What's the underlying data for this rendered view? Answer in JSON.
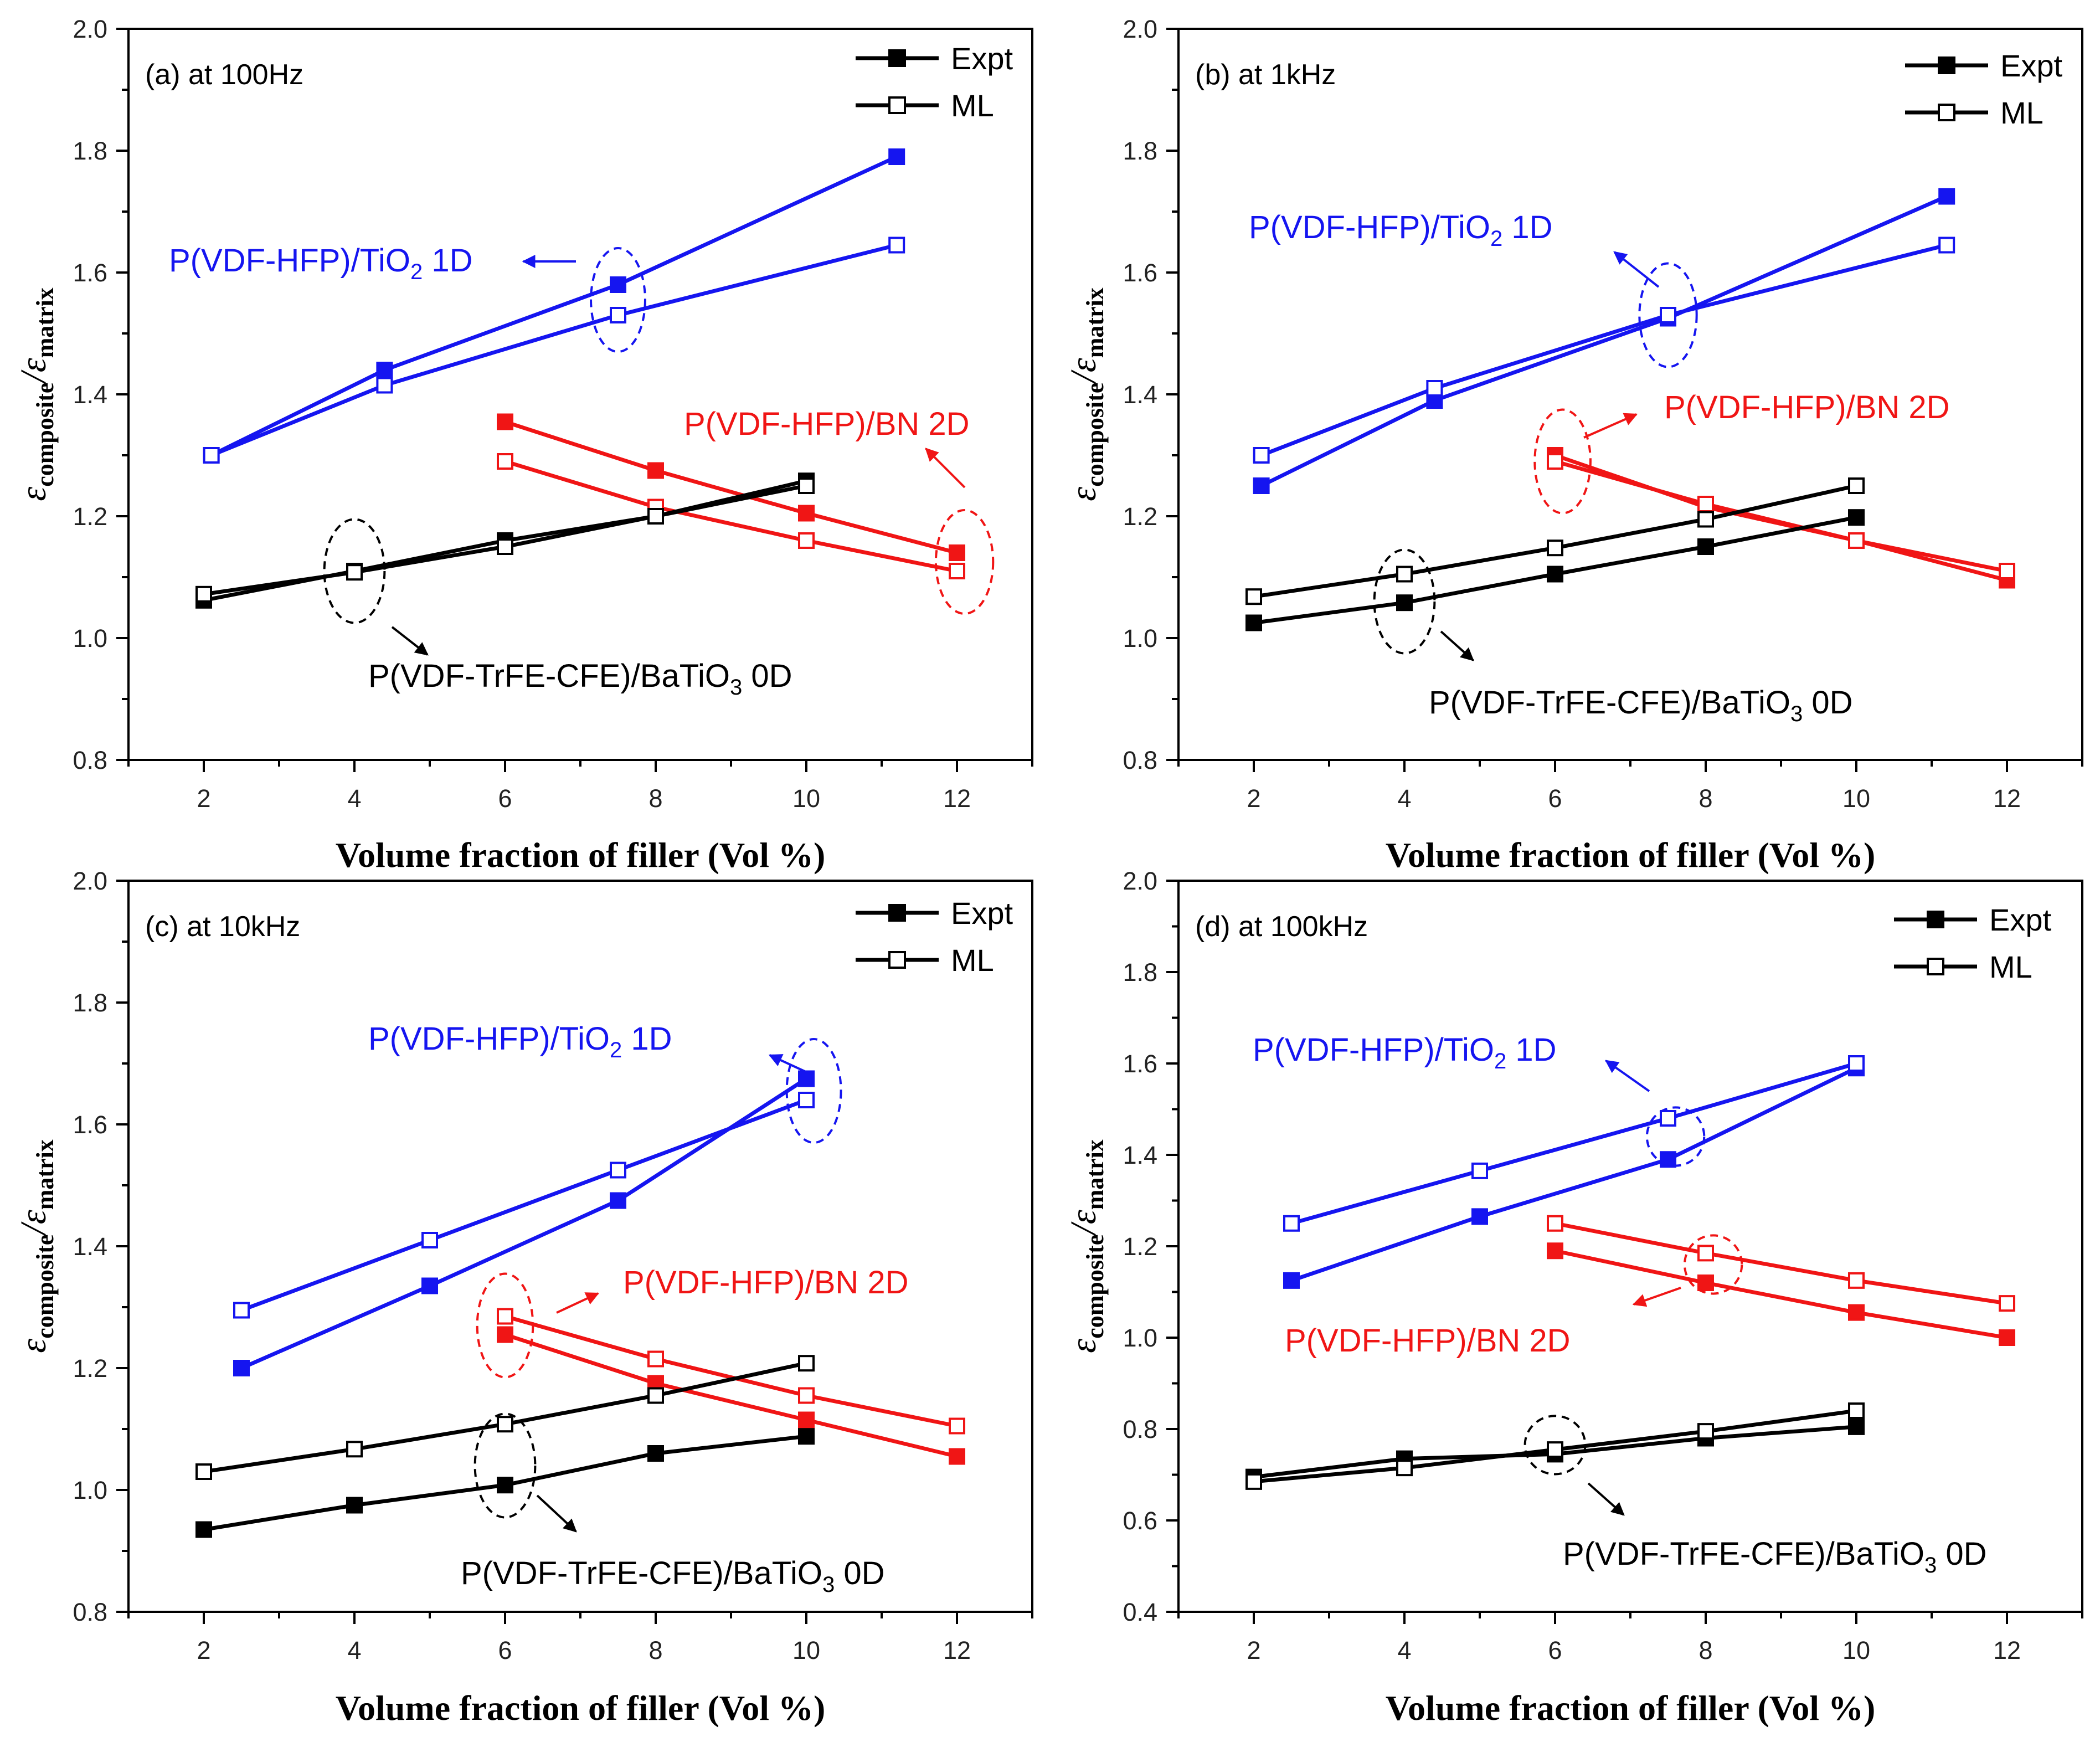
{
  "colors": {
    "tio2": "#1515f0",
    "bn": "#f01515",
    "batio3": "#000000"
  },
  "legend": {
    "expt": "Expt",
    "ml": "ML"
  },
  "labels": {
    "ylabel_main": "ε",
    "ylabel_sub1": "composite",
    "ylabel_slash": "/ε",
    "ylabel_sub2": "matrix",
    "xlabel": "Volume fraction of filler (Vol %)"
  },
  "chart_data": [
    {
      "type": "line",
      "panel_label": "(a) at 100Hz",
      "xlabel": "Volume fraction of filler (Vol %)",
      "ylabel": "εcomposite/εmatrix",
      "xlim": [
        1,
        13
      ],
      "ylim": [
        0.8,
        2.0
      ],
      "xticks": [
        2,
        4,
        6,
        8,
        10,
        12
      ],
      "yticks": [
        0.8,
        1.0,
        1.2,
        1.4,
        1.6,
        1.8,
        2.0
      ],
      "series": [
        {
          "name": "P(VDF-HFP)/TiO2 1D Expt",
          "color": "tio2",
          "marker": "filled",
          "points": [
            [
              2.1,
              1.3
            ],
            [
              4.4,
              1.44
            ],
            [
              7.5,
              1.58
            ],
            [
              11.2,
              1.79
            ]
          ]
        },
        {
          "name": "P(VDF-HFP)/TiO2 1D ML",
          "color": "tio2",
          "marker": "open",
          "points": [
            [
              2.1,
              1.3
            ],
            [
              4.4,
              1.415
            ],
            [
              7.5,
              1.53
            ],
            [
              11.2,
              1.645
            ]
          ]
        },
        {
          "name": "P(VDF-HFP)/BN 2D Expt",
          "color": "bn",
          "marker": "filled",
          "points": [
            [
              6,
              1.355
            ],
            [
              8,
              1.275
            ],
            [
              10,
              1.205
            ],
            [
              12,
              1.14
            ]
          ]
        },
        {
          "name": "P(VDF-HFP)/BN 2D ML",
          "color": "bn",
          "marker": "open",
          "points": [
            [
              6,
              1.29
            ],
            [
              8,
              1.215
            ],
            [
              10,
              1.16
            ],
            [
              12,
              1.11
            ]
          ]
        },
        {
          "name": "P(VDF-TrFE-CFE)/BaTiO3 0D Expt",
          "color": "batio3",
          "marker": "filled",
          "points": [
            [
              2,
              1.062
            ],
            [
              4,
              1.11
            ],
            [
              6,
              1.16
            ],
            [
              8,
              1.2
            ],
            [
              10,
              1.258
            ]
          ]
        },
        {
          "name": "P(VDF-TrFE-CFE)/BaTiO3 0D ML",
          "color": "batio3",
          "marker": "open",
          "points": [
            [
              2,
              1.072
            ],
            [
              4,
              1.108
            ],
            [
              6,
              1.15
            ],
            [
              8,
              1.2
            ],
            [
              10,
              1.25
            ]
          ]
        }
      ],
      "annotations": [
        {
          "text": "P(VDF-HFP)/TiO",
          "sub": "2",
          "tail": " 1D",
          "color": "tio2"
        },
        {
          "text": "P(VDF-HFP)/BN 2D",
          "sub": "",
          "tail": "",
          "color": "bn"
        },
        {
          "text": "P(VDF-TrFE-CFE)/BaTiO",
          "sub": "3",
          "tail": " 0D",
          "color": "batio3"
        }
      ]
    },
    {
      "type": "line",
      "panel_label": "(b) at 1kHz",
      "xlabel": "Volume fraction of filler (Vol %)",
      "ylabel": "εcomposite/εmatrix",
      "xlim": [
        1,
        13
      ],
      "ylim": [
        0.8,
        2.0
      ],
      "xticks": [
        2,
        4,
        6,
        8,
        10,
        12
      ],
      "yticks": [
        0.8,
        1.0,
        1.2,
        1.4,
        1.6,
        1.8,
        2.0
      ],
      "series": [
        {
          "name": "P(VDF-HFP)/TiO2 1D Expt",
          "color": "tio2",
          "marker": "filled",
          "points": [
            [
              2.1,
              1.25
            ],
            [
              4.4,
              1.39
            ],
            [
              7.5,
              1.525
            ],
            [
              11.2,
              1.725
            ]
          ]
        },
        {
          "name": "P(VDF-HFP)/TiO2 1D ML",
          "color": "tio2",
          "marker": "open",
          "points": [
            [
              2.1,
              1.3
            ],
            [
              4.4,
              1.41
            ],
            [
              7.5,
              1.53
            ],
            [
              11.2,
              1.645
            ]
          ]
        },
        {
          "name": "P(VDF-HFP)/BN 2D Expt",
          "color": "bn",
          "marker": "filled",
          "points": [
            [
              6,
              1.3
            ],
            [
              8,
              1.215
            ],
            [
              10,
              1.16
            ],
            [
              12,
              1.095
            ]
          ]
        },
        {
          "name": "P(VDF-HFP)/BN 2D ML",
          "color": "bn",
          "marker": "open",
          "points": [
            [
              6,
              1.29
            ],
            [
              8,
              1.22
            ],
            [
              10,
              1.16
            ],
            [
              12,
              1.11
            ]
          ]
        },
        {
          "name": "P(VDF-TrFE-CFE)/BaTiO3 0D Expt",
          "color": "batio3",
          "marker": "filled",
          "points": [
            [
              2,
              1.025
            ],
            [
              4,
              1.058
            ],
            [
              6,
              1.105
            ],
            [
              8,
              1.15
            ],
            [
              10,
              1.198
            ]
          ]
        },
        {
          "name": "P(VDF-TrFE-CFE)/BaTiO3 0D ML",
          "color": "batio3",
          "marker": "open",
          "points": [
            [
              2,
              1.068
            ],
            [
              4,
              1.105
            ],
            [
              6,
              1.148
            ],
            [
              8,
              1.195
            ],
            [
              10,
              1.25
            ]
          ]
        }
      ],
      "annotations": [
        {
          "text": "P(VDF-HFP)/TiO",
          "sub": "2",
          "tail": " 1D",
          "color": "tio2"
        },
        {
          "text": "P(VDF-HFP)/BN 2D",
          "sub": "",
          "tail": "",
          "color": "bn"
        },
        {
          "text": "P(VDF-TrFE-CFE)/BaTiO",
          "sub": "3",
          "tail": " 0D",
          "color": "batio3"
        }
      ]
    },
    {
      "type": "line",
      "panel_label": "(c) at 10kHz",
      "xlabel": "Volume fraction of filler (Vol %)",
      "ylabel": "εcomposite/εmatrix",
      "xlim": [
        1,
        13
      ],
      "ylim": [
        0.8,
        2.0
      ],
      "xticks": [
        2,
        4,
        6,
        8,
        10,
        12
      ],
      "yticks": [
        0.8,
        1.0,
        1.2,
        1.4,
        1.6,
        1.8,
        2.0
      ],
      "series": [
        {
          "name": "P(VDF-HFP)/TiO2 1D Expt",
          "color": "tio2",
          "marker": "filled",
          "points": [
            [
              2.5,
              1.2
            ],
            [
              5,
              1.335
            ],
            [
              7.5,
              1.475
            ],
            [
              10,
              1.675
            ]
          ]
        },
        {
          "name": "P(VDF-HFP)/TiO2 1D ML",
          "color": "tio2",
          "marker": "open",
          "points": [
            [
              2.5,
              1.295
            ],
            [
              5,
              1.41
            ],
            [
              7.5,
              1.525
            ],
            [
              10,
              1.64
            ]
          ]
        },
        {
          "name": "P(VDF-HFP)/BN 2D Expt",
          "color": "bn",
          "marker": "filled",
          "points": [
            [
              6,
              1.255
            ],
            [
              8,
              1.175
            ],
            [
              10,
              1.115
            ],
            [
              12,
              1.055
            ]
          ]
        },
        {
          "name": "P(VDF-HFP)/BN 2D ML",
          "color": "bn",
          "marker": "open",
          "points": [
            [
              6,
              1.285
            ],
            [
              8,
              1.215
            ],
            [
              10,
              1.155
            ],
            [
              12,
              1.105
            ]
          ]
        },
        {
          "name": "P(VDF-TrFE-CFE)/BaTiO3 0D Expt",
          "color": "batio3",
          "marker": "filled",
          "points": [
            [
              2,
              0.935
            ],
            [
              4,
              0.975
            ],
            [
              6,
              1.008
            ],
            [
              8,
              1.06
            ],
            [
              10,
              1.088
            ]
          ]
        },
        {
          "name": "P(VDF-TrFE-CFE)/BaTiO3 0D ML",
          "color": "batio3",
          "marker": "open",
          "points": [
            [
              2,
              1.03
            ],
            [
              4,
              1.067
            ],
            [
              6,
              1.108
            ],
            [
              8,
              1.155
            ],
            [
              10,
              1.208
            ]
          ]
        }
      ],
      "annotations": [
        {
          "text": "P(VDF-HFP)/TiO",
          "sub": "2",
          "tail": " 1D",
          "color": "tio2"
        },
        {
          "text": "P(VDF-HFP)/BN 2D",
          "sub": "",
          "tail": "",
          "color": "bn"
        },
        {
          "text": "P(VDF-TrFE-CFE)/BaTiO",
          "sub": "3",
          "tail": " 0D",
          "color": "batio3"
        }
      ]
    },
    {
      "type": "line",
      "panel_label": "(d) at 100kHz",
      "xlabel": "Volume fraction of filler (Vol %)",
      "ylabel": "εcomposite/εmatrix",
      "xlim": [
        1,
        13
      ],
      "ylim": [
        0.4,
        2.0
      ],
      "xticks": [
        2,
        4,
        6,
        8,
        10,
        12
      ],
      "yticks": [
        0.4,
        0.6,
        0.8,
        1.0,
        1.2,
        1.4,
        1.6,
        1.8,
        2.0
      ],
      "series": [
        {
          "name": "P(VDF-HFP)/TiO2 1D Expt",
          "color": "tio2",
          "marker": "filled",
          "points": [
            [
              2.5,
              1.125
            ],
            [
              5,
              1.265
            ],
            [
              7.5,
              1.39
            ],
            [
              10,
              1.59
            ]
          ]
        },
        {
          "name": "P(VDF-HFP)/TiO2 1D ML",
          "color": "tio2",
          "marker": "open",
          "points": [
            [
              2.5,
              1.25
            ],
            [
              5,
              1.365
            ],
            [
              7.5,
              1.48
            ],
            [
              10,
              1.6
            ]
          ]
        },
        {
          "name": "P(VDF-HFP)/BN 2D Expt",
          "color": "bn",
          "marker": "filled",
          "points": [
            [
              6,
              1.19
            ],
            [
              8,
              1.12
            ],
            [
              10,
              1.055
            ],
            [
              12,
              1.0
            ]
          ]
        },
        {
          "name": "P(VDF-HFP)/BN 2D ML",
          "color": "bn",
          "marker": "open",
          "points": [
            [
              6,
              1.25
            ],
            [
              8,
              1.185
            ],
            [
              10,
              1.125
            ],
            [
              12,
              1.075
            ]
          ]
        },
        {
          "name": "P(VDF-TrFE-CFE)/BaTiO3 0D Expt",
          "color": "batio3",
          "marker": "filled",
          "points": [
            [
              2,
              0.695
            ],
            [
              4,
              0.735
            ],
            [
              6,
              0.745
            ],
            [
              8,
              0.78
            ],
            [
              10,
              0.805
            ]
          ]
        },
        {
          "name": "P(VDF-TrFE-CFE)/BaTiO3 0D ML",
          "color": "batio3",
          "marker": "open",
          "points": [
            [
              2,
              0.685
            ],
            [
              4,
              0.715
            ],
            [
              6,
              0.755
            ],
            [
              8,
              0.795
            ],
            [
              10,
              0.84
            ]
          ]
        }
      ],
      "annotations": [
        {
          "text": "P(VDF-HFP)/TiO",
          "sub": "2",
          "tail": " 1D",
          "color": "tio2"
        },
        {
          "text": "P(VDF-HFP)/BN 2D",
          "sub": "",
          "tail": "",
          "color": "bn"
        },
        {
          "text": "P(VDF-TrFE-CFE)/BaTiO",
          "sub": "3",
          "tail": " 0D",
          "color": "batio3"
        }
      ]
    }
  ]
}
